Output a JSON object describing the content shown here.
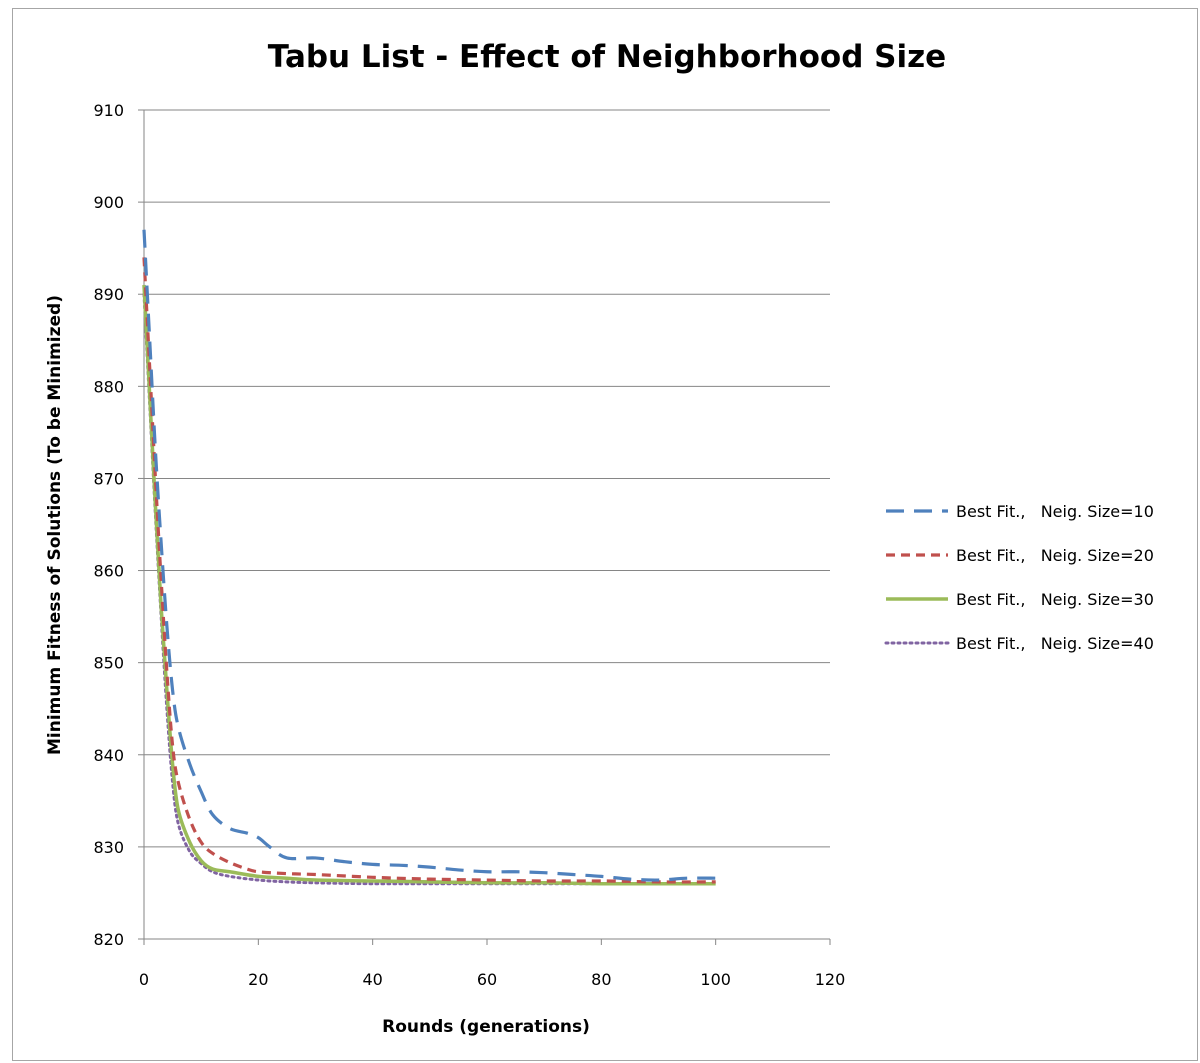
{
  "chart_data": {
    "type": "line",
    "title": "Tabu List - Effect of Neighborhood Size",
    "xlabel": "Rounds (generations)",
    "ylabel": "Minimum Fitness of Solutions  (To be Minimized)",
    "xlim": [
      0,
      120
    ],
    "ylim": [
      820,
      910
    ],
    "xticks": [
      0,
      20,
      40,
      60,
      80,
      100,
      120
    ],
    "yticks": [
      820,
      830,
      840,
      850,
      860,
      870,
      880,
      890,
      900,
      910
    ],
    "grid": "horizontal",
    "legend_position": "right",
    "series": [
      {
        "name": "Best Fit.,   Neig. Size=10",
        "color": "#4f81bd",
        "dash": "long-dash",
        "x": [
          0,
          1,
          2,
          3,
          4,
          5,
          6,
          8,
          10,
          12,
          15,
          18,
          20,
          22,
          25,
          30,
          35,
          40,
          45,
          50,
          55,
          60,
          65,
          70,
          75,
          80,
          85,
          90,
          95,
          100
        ],
        "y": [
          897,
          885,
          873,
          863,
          854,
          847,
          843,
          839,
          836,
          833.5,
          832,
          831.5,
          831,
          830,
          828.8,
          828.8,
          828.4,
          828.1,
          828,
          827.8,
          827.5,
          827.3,
          827.3,
          827.2,
          827,
          826.8,
          826.5,
          826.4,
          826.6,
          826.6
        ]
      },
      {
        "name": "Best Fit.,   Neig. Size=20",
        "color": "#c0504d",
        "dash": "short-dash",
        "x": [
          0,
          1,
          2,
          3,
          4,
          5,
          6,
          8,
          10,
          12,
          15,
          18,
          20,
          25,
          30,
          40,
          50,
          60,
          70,
          80,
          90,
          100
        ],
        "y": [
          894,
          882,
          870,
          859,
          849,
          841,
          837,
          833,
          830.5,
          829.3,
          828.3,
          827.6,
          827.3,
          827.1,
          827,
          826.7,
          826.5,
          826.4,
          826.3,
          826.3,
          826.2,
          826.2
        ]
      },
      {
        "name": "Best Fit.,   Neig. Size=30",
        "color": "#9bbb59",
        "dash": "solid",
        "x": [
          0,
          1,
          2,
          3,
          4,
          5,
          6,
          8,
          10,
          12,
          15,
          20,
          25,
          30,
          40,
          50,
          60,
          70,
          80,
          90,
          100
        ],
        "y": [
          891,
          879,
          867,
          856,
          847,
          839,
          834,
          830.5,
          828.5,
          827.6,
          827.3,
          826.8,
          826.6,
          826.4,
          826.3,
          826.2,
          826.1,
          826.1,
          826,
          826,
          826
        ]
      },
      {
        "name": "Best Fit.,   Neig. Size=40",
        "color": "#8064a2",
        "dash": "dotted",
        "x": [
          0,
          1,
          2,
          3,
          4,
          5,
          6,
          8,
          10,
          12,
          15,
          20,
          25,
          30,
          40,
          50,
          60,
          70,
          80,
          90,
          100
        ],
        "y": [
          890,
          878,
          866,
          855,
          845,
          837,
          832.5,
          829.5,
          828.2,
          827.3,
          826.8,
          826.4,
          826.2,
          826.1,
          826,
          826,
          826,
          826,
          826,
          826,
          826
        ]
      }
    ]
  }
}
